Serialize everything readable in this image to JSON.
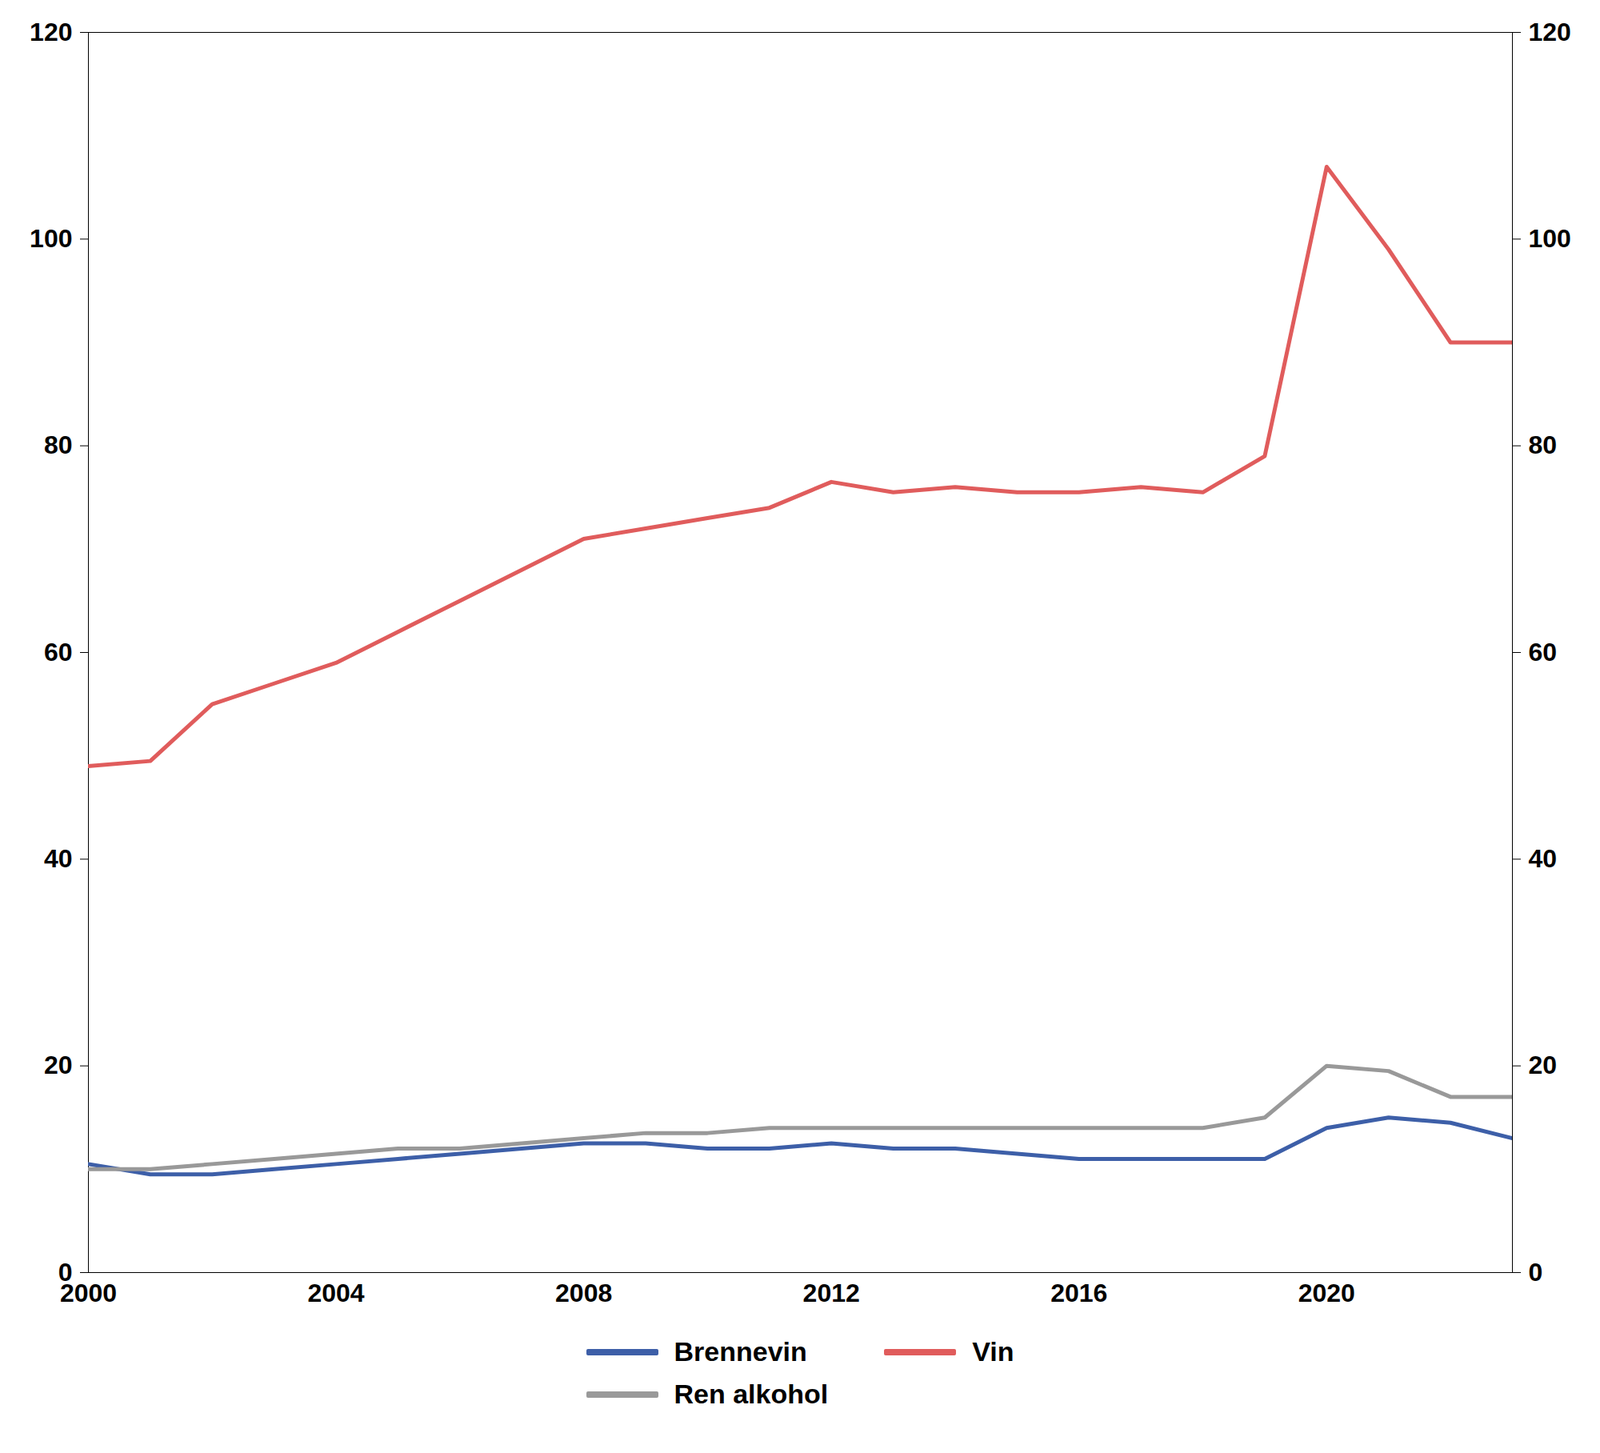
{
  "chart_data": {
    "type": "line",
    "x": [
      2000,
      2001,
      2002,
      2003,
      2004,
      2005,
      2006,
      2007,
      2008,
      2009,
      2010,
      2011,
      2012,
      2013,
      2014,
      2015,
      2016,
      2017,
      2018,
      2019,
      2020,
      2021,
      2022,
      2023
    ],
    "series": [
      {
        "name": "Brennevin",
        "color": "#3d5fa8",
        "values": [
          10.5,
          9.5,
          9.5,
          10.0,
          10.5,
          11.0,
          11.5,
          12.0,
          12.5,
          12.5,
          12.0,
          12.0,
          12.5,
          12.0,
          12.0,
          11.5,
          11.0,
          11.0,
          11.0,
          11.0,
          14.0,
          15.0,
          14.5,
          13.0
        ]
      },
      {
        "name": "Vin",
        "color": "#e05c5c",
        "values": [
          49.0,
          49.5,
          55.0,
          57.0,
          59.0,
          62.0,
          65.0,
          68.0,
          71.0,
          72.0,
          73.0,
          74.0,
          76.5,
          75.5,
          76.0,
          75.5,
          75.5,
          76.0,
          75.5,
          79.0,
          107.0,
          99.0,
          90.0,
          90.0
        ]
      },
      {
        "name": "Ren alkohol",
        "color": "#999999",
        "values": [
          10.0,
          10.0,
          10.5,
          11.0,
          11.5,
          12.0,
          12.0,
          12.5,
          13.0,
          13.5,
          13.5,
          14.0,
          14.0,
          14.0,
          14.0,
          14.0,
          14.0,
          14.0,
          14.0,
          15.0,
          20.0,
          19.5,
          17.0,
          17.0
        ]
      }
    ],
    "xlim": [
      2000,
      2023
    ],
    "xticks": [
      2000,
      2004,
      2008,
      2012,
      2016,
      2020
    ],
    "ylim": [
      0,
      120
    ],
    "yticks": [
      0,
      20,
      40,
      60,
      80,
      100,
      120
    ],
    "y2lim": [
      0,
      120
    ],
    "y2ticks": [
      0,
      20,
      40,
      60,
      80,
      100,
      120
    ],
    "grid": false,
    "legend": "bottom"
  }
}
